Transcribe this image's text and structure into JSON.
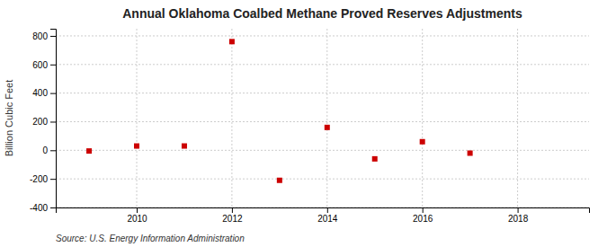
{
  "chart_data": {
    "type": "scatter",
    "title": "Annual Oklahoma Coalbed Methane Proved Reserves Adjustments",
    "ylabel": "Billion Cubic Feet",
    "annotation": "Source: U.S. Energy Information Administration",
    "x": [
      2009,
      2010,
      2011,
      2012,
      2013,
      2014,
      2015,
      2016,
      2017
    ],
    "values": [
      -5,
      30,
      30,
      760,
      -210,
      160,
      -60,
      60,
      -20
    ],
    "color": "#cc0000",
    "marker": "square",
    "xlim": [
      2008.3,
      2019.5
    ],
    "ylim": [
      -400,
      850
    ],
    "xticks": [
      2010,
      2012,
      2014,
      2016,
      2018
    ],
    "yticks": [
      -400,
      -200,
      0,
      200,
      400,
      600,
      800
    ],
    "grid": true
  }
}
